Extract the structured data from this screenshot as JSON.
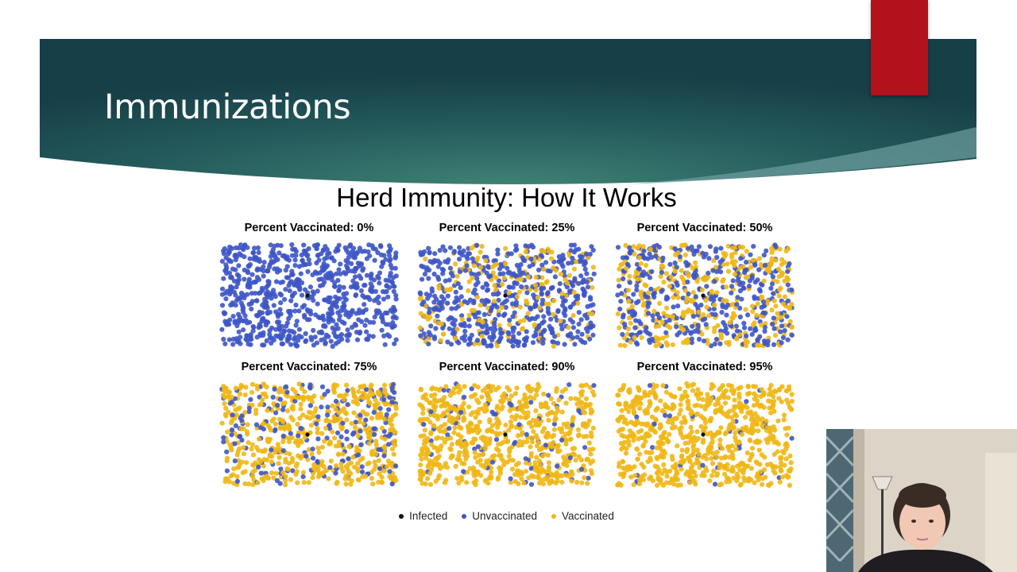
{
  "slide": {
    "title": "Immunizations",
    "accent_color": "#b3121a",
    "banner_colors": [
      "#173f47",
      "#3a7b70"
    ]
  },
  "chart_data": {
    "type": "scatter",
    "title": "Herd Immunity: How It Works",
    "panels": [
      {
        "title": "Percent Vaccinated: 0%",
        "percent_vaccinated": 0
      },
      {
        "title": "Percent Vaccinated: 25%",
        "percent_vaccinated": 25
      },
      {
        "title": "Percent Vaccinated: 50%",
        "percent_vaccinated": 50
      },
      {
        "title": "Percent Vaccinated: 75%",
        "percent_vaccinated": 75
      },
      {
        "title": "Percent Vaccinated: 90%",
        "percent_vaccinated": 90
      },
      {
        "title": "Percent Vaccinated: 95%",
        "percent_vaccinated": 95
      }
    ],
    "legend": {
      "position": "bottom",
      "items": [
        {
          "label": "Infected",
          "color": "#111111"
        },
        {
          "label": "Unvaccinated",
          "color": "#3d55c6"
        },
        {
          "label": "Vaccinated",
          "color": "#f0b715"
        }
      ]
    },
    "grid": false
  },
  "webcam": {
    "icon": "presenter-video-icon"
  }
}
